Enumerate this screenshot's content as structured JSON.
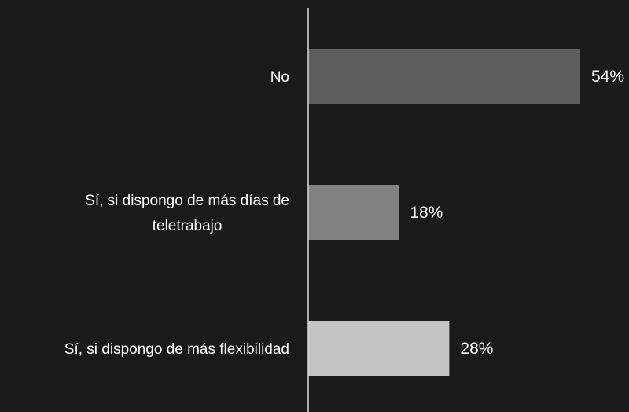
{
  "chart_data": {
    "type": "bar",
    "orientation": "horizontal",
    "categories": [
      [
        "No"
      ],
      [
        "Sí, si dispongo de más días de",
        "teletrabajo"
      ],
      [
        "Sí, si dispongo de más flexibilidad"
      ]
    ],
    "values": [
      54,
      18,
      28
    ],
    "value_labels": [
      "54%",
      "18%",
      "28%"
    ],
    "bar_colors": [
      "#5e5e5e",
      "#828282",
      "#c4c4c4"
    ],
    "xlim": [
      0,
      60
    ],
    "grid": false,
    "legend": "none"
  },
  "colors": {
    "background": "#1a1a1a",
    "axis": "#d9d9d9",
    "text": "#ffffff"
  }
}
